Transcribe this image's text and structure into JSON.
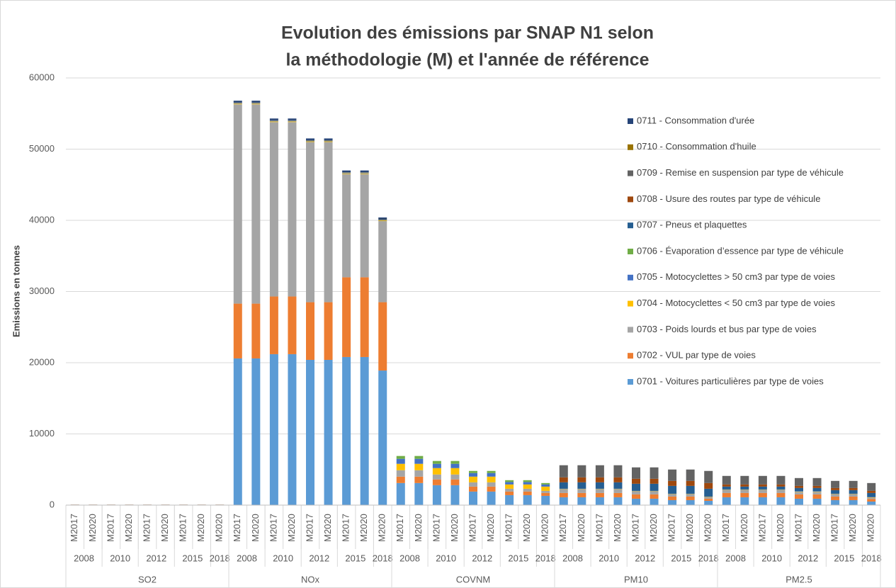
{
  "chart_data": {
    "type": "stacked_bar",
    "title_lines": [
      "Evolution des émissions par SNAP N1 selon",
      "la méthodologie (M) et l'année de référence"
    ],
    "ylabel": "Emissions en tonnes",
    "ylim": [
      0,
      60000
    ],
    "yticks": [
      0,
      10000,
      20000,
      30000,
      40000,
      50000,
      60000
    ],
    "grid": true,
    "groups": [
      {
        "name": "SO2",
        "years": [
          {
            "name": "2008",
            "categories": [
              "M2017",
              "M2020"
            ]
          },
          {
            "name": "2010",
            "categories": [
              "M2017",
              "M2020"
            ]
          },
          {
            "name": "2012",
            "categories": [
              "M2017",
              "M2020"
            ]
          },
          {
            "name": "2015",
            "categories": [
              "M2017",
              "M2020"
            ]
          },
          {
            "name": "2018",
            "categories": [
              "M2020"
            ]
          }
        ]
      },
      {
        "name": "NOx",
        "years": [
          {
            "name": "2008",
            "categories": [
              "M2017",
              "M2020"
            ]
          },
          {
            "name": "2010",
            "categories": [
              "M2017",
              "M2020"
            ]
          },
          {
            "name": "2012",
            "categories": [
              "M2017",
              "M2020"
            ]
          },
          {
            "name": "2015",
            "categories": [
              "M2017",
              "M2020"
            ]
          },
          {
            "name": "2018",
            "categories": [
              "M2020"
            ]
          }
        ]
      },
      {
        "name": "COVNM",
        "years": [
          {
            "name": "2008",
            "categories": [
              "M2017",
              "M2020"
            ]
          },
          {
            "name": "2010",
            "categories": [
              "M2017",
              "M2020"
            ]
          },
          {
            "name": "2012",
            "categories": [
              "M2017",
              "M2020"
            ]
          },
          {
            "name": "2015",
            "categories": [
              "M2017",
              "M2020"
            ]
          },
          {
            "name": "2018",
            "categories": [
              "M2020"
            ]
          }
        ]
      },
      {
        "name": "PM10",
        "years": [
          {
            "name": "2008",
            "categories": [
              "M2017",
              "M2020"
            ]
          },
          {
            "name": "2010",
            "categories": [
              "M2017",
              "M2020"
            ]
          },
          {
            "name": "2012",
            "categories": [
              "M2017",
              "M2020"
            ]
          },
          {
            "name": "2015",
            "categories": [
              "M2017",
              "M2020"
            ]
          },
          {
            "name": "2018",
            "categories": [
              "M2020"
            ]
          }
        ]
      },
      {
        "name": "PM2.5",
        "years": [
          {
            "name": "2008",
            "categories": [
              "M2017",
              "M2020"
            ]
          },
          {
            "name": "2010",
            "categories": [
              "M2017",
              "M2020"
            ]
          },
          {
            "name": "2012",
            "categories": [
              "M2017",
              "M2020"
            ]
          },
          {
            "name": "2015",
            "categories": [
              "M2017",
              "M2020"
            ]
          },
          {
            "name": "2018",
            "categories": [
              "M2020"
            ]
          }
        ]
      }
    ],
    "series": [
      {
        "name": "0701 - Voitures particulières par type de voies",
        "color": "#5b9bd5",
        "values": [
          60,
          60,
          60,
          60,
          60,
          60,
          60,
          60,
          60,
          20600,
          20600,
          21200,
          21200,
          20400,
          20400,
          20800,
          20800,
          18900,
          3100,
          3100,
          2800,
          2800,
          1900,
          1900,
          1400,
          1400,
          1300,
          1100,
          1100,
          1100,
          1100,
          900,
          900,
          700,
          700,
          600,
          1100,
          1100,
          1100,
          1100,
          900,
          900,
          700,
          700,
          500
        ]
      },
      {
        "name": "0702 - VUL par type de voies",
        "color": "#ed7d31",
        "values": [
          20,
          20,
          20,
          20,
          20,
          20,
          20,
          20,
          20,
          7700,
          7700,
          8100,
          8100,
          8100,
          8100,
          11200,
          11200,
          9600,
          900,
          900,
          800,
          800,
          700,
          700,
          500,
          500,
          400,
          600,
          600,
          600,
          600,
          600,
          600,
          500,
          500,
          300,
          600,
          600,
          600,
          600,
          600,
          600,
          500,
          500,
          350
        ]
      },
      {
        "name": "0703 - Poids lourds et bus par type de voies",
        "color": "#a5a5a5",
        "values": [
          20,
          20,
          20,
          20,
          20,
          20,
          20,
          20,
          20,
          28000,
          28000,
          24500,
          24500,
          22500,
          22500,
          14500,
          14500,
          11400,
          900,
          900,
          700,
          700,
          600,
          600,
          400,
          400,
          300,
          500,
          500,
          500,
          500,
          400,
          400,
          300,
          300,
          200,
          400,
          400,
          400,
          400,
          350,
          350,
          300,
          300,
          200
        ]
      },
      {
        "name": "0704 - Motocyclettes < 50 cm3 par type de voies",
        "color": "#ffc000",
        "values": [
          0,
          0,
          0,
          0,
          0,
          0,
          0,
          0,
          0,
          100,
          100,
          100,
          100,
          100,
          100,
          100,
          100,
          100,
          900,
          900,
          900,
          900,
          800,
          800,
          600,
          600,
          600,
          50,
          50,
          50,
          50,
          50,
          50,
          50,
          50,
          50,
          50,
          50,
          50,
          50,
          50,
          50,
          50,
          50,
          50
        ]
      },
      {
        "name": "0705 - Motocyclettes > 50 cm3 par type de voies",
        "color": "#4472c4",
        "values": [
          0,
          0,
          0,
          0,
          0,
          0,
          0,
          0,
          0,
          100,
          100,
          100,
          100,
          100,
          100,
          100,
          100,
          100,
          700,
          700,
          600,
          600,
          500,
          500,
          350,
          350,
          300,
          50,
          50,
          50,
          50,
          50,
          50,
          50,
          50,
          50,
          50,
          50,
          50,
          50,
          50,
          50,
          50,
          50,
          50
        ]
      },
      {
        "name": "0706 - Évaporation d’essence par type de véhicule",
        "color": "#70ad47",
        "values": [
          0,
          0,
          0,
          0,
          0,
          0,
          0,
          0,
          0,
          0,
          0,
          0,
          0,
          0,
          0,
          0,
          0,
          0,
          400,
          400,
          400,
          400,
          300,
          300,
          250,
          250,
          200,
          0,
          0,
          0,
          0,
          0,
          0,
          0,
          0,
          0,
          0,
          0,
          0,
          0,
          0,
          0,
          0,
          0,
          0
        ]
      },
      {
        "name": "0707 - Pneus et plaquettes",
        "color": "#255e91",
        "values": [
          0,
          0,
          0,
          0,
          0,
          0,
          0,
          0,
          0,
          0,
          0,
          0,
          0,
          0,
          0,
          0,
          0,
          0,
          0,
          0,
          0,
          0,
          0,
          0,
          0,
          0,
          0,
          900,
          900,
          900,
          900,
          1000,
          1000,
          1100,
          1100,
          1100,
          400,
          400,
          400,
          400,
          450,
          450,
          500,
          500,
          550
        ]
      },
      {
        "name": "0708 - Usure des routes par type de véhicule",
        "color": "#9e480e",
        "values": [
          0,
          0,
          0,
          0,
          0,
          0,
          0,
          0,
          0,
          0,
          0,
          0,
          0,
          0,
          0,
          0,
          0,
          0,
          0,
          0,
          0,
          0,
          0,
          0,
          0,
          0,
          0,
          700,
          700,
          700,
          700,
          700,
          700,
          700,
          700,
          800,
          300,
          300,
          300,
          300,
          300,
          300,
          300,
          300,
          300
        ]
      },
      {
        "name": "0709 - Remise en suspension par type de véhicule",
        "color": "#636363",
        "values": [
          0,
          0,
          0,
          0,
          0,
          0,
          0,
          0,
          0,
          0,
          0,
          0,
          0,
          0,
          0,
          0,
          0,
          0,
          0,
          0,
          0,
          0,
          0,
          0,
          0,
          0,
          0,
          1700,
          1700,
          1700,
          1700,
          1600,
          1600,
          1600,
          1600,
          1700,
          1200,
          1200,
          1200,
          1200,
          1100,
          1100,
          1000,
          1000,
          1100
        ]
      },
      {
        "name": "0710 - Consommation d'huile",
        "color": "#997300",
        "values": [
          0,
          0,
          0,
          0,
          0,
          0,
          0,
          0,
          0,
          50,
          50,
          50,
          50,
          50,
          50,
          50,
          50,
          50,
          0,
          0,
          0,
          0,
          0,
          0,
          0,
          0,
          0,
          0,
          0,
          0,
          0,
          0,
          0,
          0,
          0,
          0,
          0,
          0,
          0,
          0,
          0,
          0,
          0,
          0,
          0
        ]
      },
      {
        "name": "0711 - Consommation d'urée",
        "color": "#264478",
        "values": [
          0,
          0,
          0,
          0,
          0,
          0,
          0,
          0,
          0,
          250,
          250,
          250,
          250,
          250,
          250,
          250,
          250,
          250,
          0,
          0,
          0,
          0,
          0,
          0,
          0,
          0,
          0,
          0,
          0,
          0,
          0,
          0,
          0,
          0,
          0,
          0,
          0,
          0,
          0,
          0,
          0,
          0,
          0,
          0,
          0
        ]
      }
    ]
  }
}
